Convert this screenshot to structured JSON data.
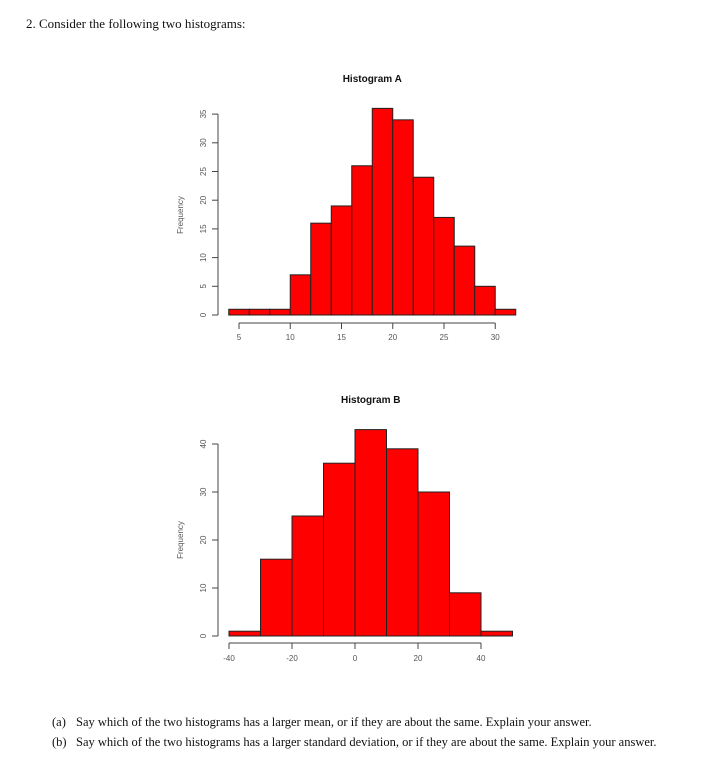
{
  "document": {
    "question_header": "2. Consider the following two histograms:",
    "subquestions": [
      {
        "label": "(a)",
        "text": "Say which of the two histograms has a larger mean, or if they are about the same. Explain your answer."
      },
      {
        "label": "(b)",
        "text": "Say which of the two histograms has a larger standard deviation, or if they are about the same. Explain your answer."
      }
    ]
  },
  "colors": {
    "bar_fill": "#ff0000",
    "bar_border": "#222222",
    "axis": "#444444"
  },
  "chart_data": [
    {
      "type": "bar",
      "title": "Histogram A",
      "xlabel": "",
      "ylabel": "Frequency",
      "bin_edges": [
        4,
        6,
        8,
        10,
        12,
        14,
        16,
        18,
        20,
        22,
        24,
        26,
        28,
        30,
        32
      ],
      "values": [
        1,
        1,
        1,
        7,
        16,
        19,
        26,
        36,
        34,
        24,
        17,
        12,
        5,
        1
      ],
      "xticks": [
        5,
        10,
        15,
        20,
        25,
        30
      ],
      "yticks": [
        0,
        5,
        10,
        15,
        20,
        25,
        30,
        35
      ],
      "xlim": [
        4,
        32
      ],
      "ylim": [
        0,
        36
      ],
      "grid": false
    },
    {
      "type": "bar",
      "title": "Histogram B",
      "xlabel": "",
      "ylabel": "Frequency",
      "bin_edges": [
        -40,
        -30,
        -20,
        -10,
        0,
        10,
        20,
        30,
        40,
        50
      ],
      "values": [
        1,
        16,
        25,
        36,
        43,
        39,
        30,
        9,
        1
      ],
      "xticks": [
        -40,
        -20,
        0,
        20,
        40
      ],
      "yticks": [
        0,
        10,
        20,
        30,
        40
      ],
      "xlim": [
        -40,
        50
      ],
      "ylim": [
        0,
        43
      ],
      "grid": false
    }
  ]
}
